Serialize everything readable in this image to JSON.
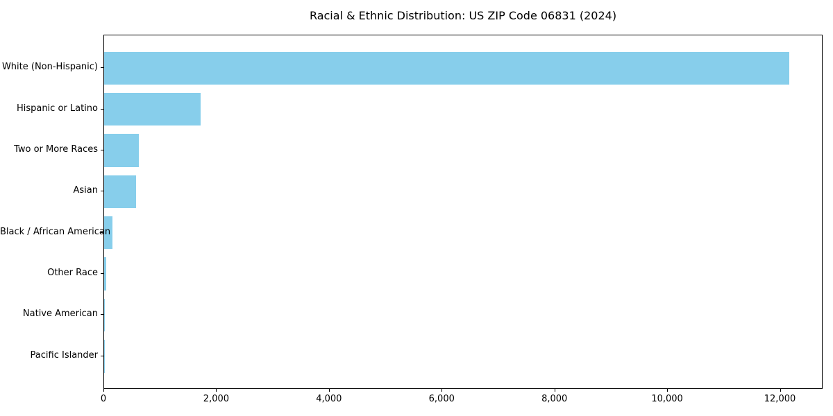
{
  "chart": {
    "title": "Racial & Ethnic Distribution: US ZIP Code 06831 (2024)"
  },
  "chart_data": {
    "type": "bar",
    "orientation": "horizontal",
    "title": "Racial & Ethnic Distribution: US ZIP Code 06831 (2024)",
    "categories": [
      "White (Non-Hispanic)",
      "Hispanic or Latino",
      "Two or More Races",
      "Asian",
      "Black / African American",
      "Other Race",
      "Native American",
      "Pacific Islander"
    ],
    "values": [
      12150,
      1710,
      615,
      565,
      145,
      40,
      5,
      2
    ],
    "xlabel": "",
    "ylabel": "",
    "xlim": [
      0,
      12757
    ],
    "xticks": [
      0,
      2000,
      4000,
      6000,
      8000,
      10000,
      12000
    ],
    "xtick_labels": [
      "0",
      "2,000",
      "4,000",
      "6,000",
      "8,000",
      "10,000",
      "12,000"
    ],
    "grid": false,
    "legend": null,
    "bar_color": "#87CEEB",
    "axis_color": "#000000"
  }
}
